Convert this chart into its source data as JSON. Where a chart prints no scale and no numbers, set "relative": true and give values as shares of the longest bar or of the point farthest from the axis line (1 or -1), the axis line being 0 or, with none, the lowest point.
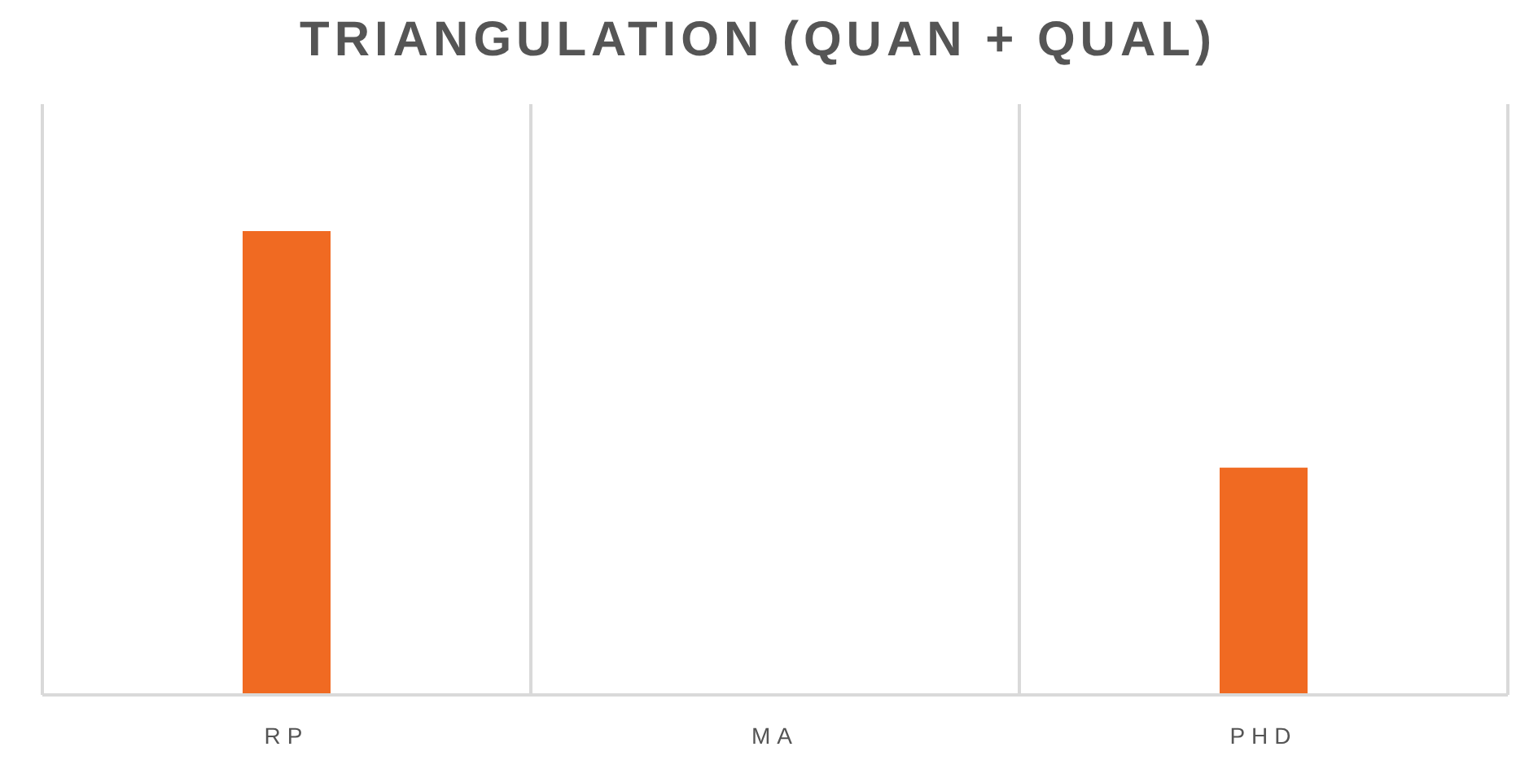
{
  "chart_data": {
    "type": "bar",
    "title": "TRIANGULATION (QUAN + QUAL)",
    "categories": [
      "RP",
      "MA",
      "PHD"
    ],
    "values": [
      1,
      0,
      0.49
    ],
    "color": "#f06a22",
    "relative": true,
    "grid": "x"
  }
}
